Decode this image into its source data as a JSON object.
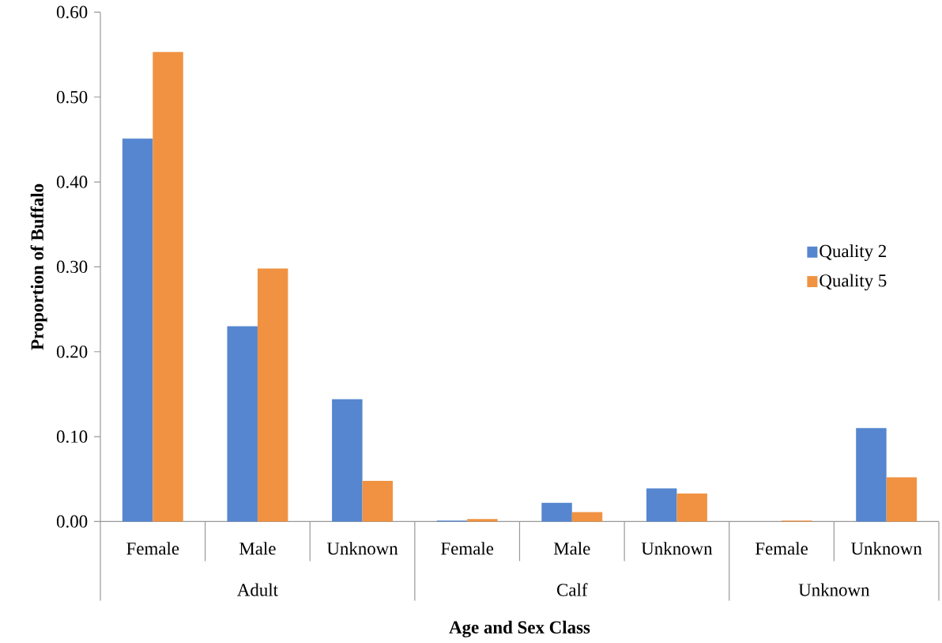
{
  "chart_data": {
    "type": "bar",
    "xlabel": "Age and Sex Class",
    "ylabel": "Proportion of Buffalo",
    "categories": [
      "Female",
      "Male",
      "Unknown",
      "Female",
      "Male",
      "Unknown",
      "Female",
      "Unknown"
    ],
    "annotations": [
      "Adult",
      "Calf",
      "Unknown"
    ],
    "series": [
      {
        "name": "Quality 2",
        "color": "#5586cf",
        "values": [
          0.451,
          0.23,
          0.144,
          0.001,
          0.022,
          0.039,
          0,
          0.11
        ]
      },
      {
        "name": "Quality 5",
        "color": "#f09241",
        "values": [
          0.553,
          0.298,
          0.048,
          0.003,
          0.011,
          0.033,
          0.001,
          0.052
        ]
      }
    ],
    "ylim": [
      0,
      0.6
    ],
    "yticks": [
      {
        "value": 0,
        "label": "0.00"
      },
      {
        "value": 0.1,
        "label": "0.10"
      },
      {
        "value": 0.2,
        "label": "0.20"
      },
      {
        "value": 0.3,
        "label": "0.30"
      },
      {
        "value": 0.4,
        "label": "0.40"
      },
      {
        "value": 0.5,
        "label": "0.50"
      },
      {
        "value": 0.6,
        "label": "0.60"
      }
    ],
    "legend": "right",
    "grid": false
  }
}
